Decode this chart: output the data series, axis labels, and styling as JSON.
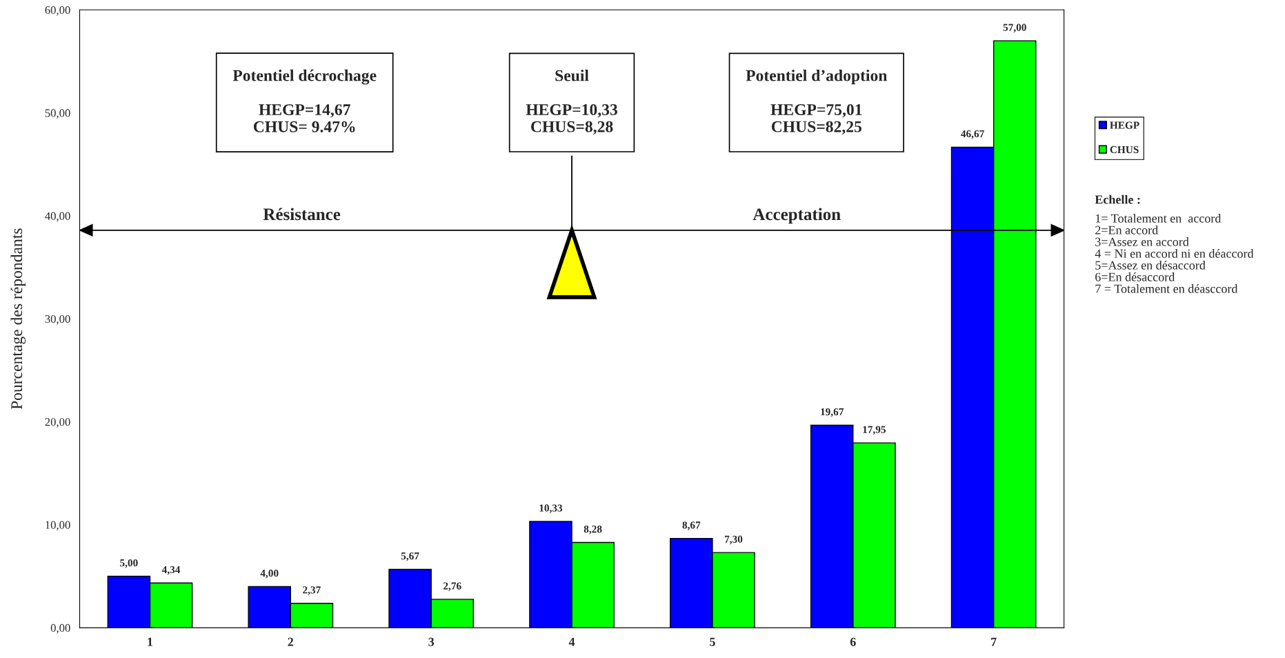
{
  "chart_data": {
    "type": "bar",
    "ylabel": "Pourcentage des répondants",
    "categories": [
      "1",
      "2",
      "3",
      "4",
      "5",
      "6",
      "7"
    ],
    "series": [
      {
        "name": "HEGP",
        "color": "#0000ff",
        "values": [
          5.0,
          4.0,
          5.67,
          10.33,
          8.67,
          19.67,
          46.67
        ],
        "value_labels": [
          "5,00",
          "4,00",
          "5,67",
          "10,33",
          "8,67",
          "19,67",
          "46,67"
        ]
      },
      {
        "name": "CHUS",
        "color": "#00ff00",
        "values": [
          4.34,
          2.37,
          2.76,
          8.28,
          7.3,
          17.95,
          57.0
        ],
        "value_labels": [
          "4,34",
          "2,37",
          "2,76",
          "8,28",
          "7,30",
          "17,95",
          "57,00"
        ]
      }
    ],
    "ylim": [
      0,
      60
    ],
    "yticks": [
      {
        "value": 0,
        "label": "0,00"
      },
      {
        "value": 10,
        "label": "10,00"
      },
      {
        "value": 20,
        "label": "20,00"
      },
      {
        "value": 30,
        "label": "30,00"
      },
      {
        "value": 40,
        "label": "40,00"
      },
      {
        "value": 50,
        "label": "50,00"
      },
      {
        "value": 60,
        "label": "60,00"
      }
    ],
    "grid": false,
    "ref_lines": [
      {
        "axis": "y",
        "value": 38.6,
        "color": "#000000",
        "line_style": "solid"
      }
    ],
    "legend": "right",
    "annotations": [
      "Potentiel décrochage\n\nHEGP=14,67\nCHUS= 9.47%",
      "Seuil\n\nHEGP=10,33\nCHUS=8,28",
      "Potentiel d’adoption\n\nHEGP=75,01\nCHUS=82,25",
      "Résistance",
      "Acceptation",
      "Echelle :",
      "1= Totalement en  accord\n2=En accord\n3=Assez en accord\n4 = Ni en accord ni en déaccord\n5=Assez en désaccord\n6=En désaccord\n7 = Totalement en déasccord"
    ]
  }
}
